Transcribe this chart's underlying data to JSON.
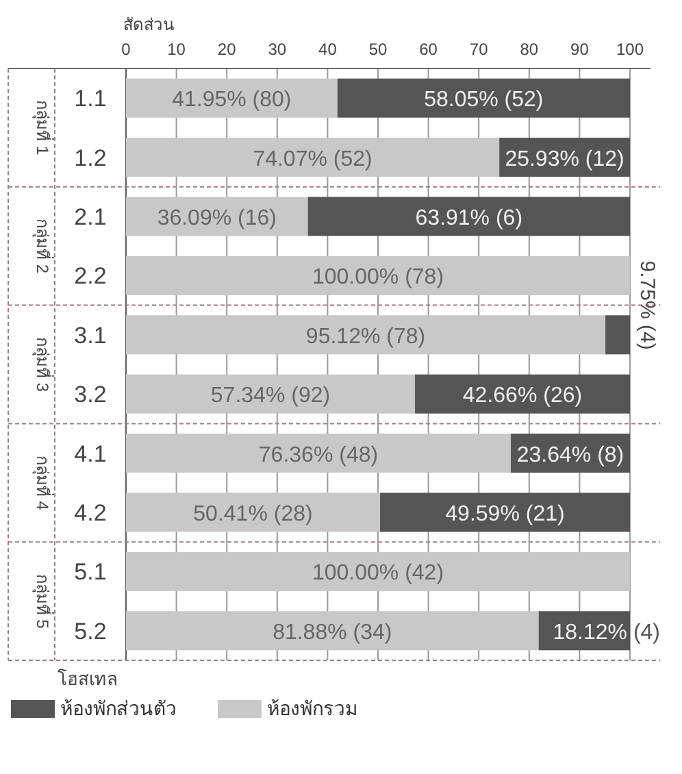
{
  "chart_data": {
    "type": "bar",
    "orientation": "horizontal",
    "stacked": true,
    "xlabel": "สัดส่วน",
    "ylabel": "โฮสเทล",
    "categories": [
      "1.1",
      "1.2",
      "2.1",
      "2.2",
      "3.1",
      "3.2",
      "4.1",
      "4.2",
      "5.1",
      "5.2"
    ],
    "xlim": [
      0,
      100
    ],
    "xticks": [
      0,
      10,
      20,
      30,
      40,
      50,
      60,
      70,
      80,
      90,
      100
    ],
    "grid": "x",
    "legend": "bottom",
    "series": [
      {
        "name": "ห้องพักรวม",
        "color": "#c8c8c8",
        "values": [
          41.95,
          74.07,
          36.09,
          100,
          95.12,
          57.34,
          76.36,
          50.41,
          100,
          81.88
        ],
        "value_labels": [
          "41.95% (80)",
          "74.07% (52)",
          "36.09% (16)",
          "100.00% (78)",
          "95.12% (78)",
          "57.34% (92)",
          "76.36% (48)",
          "50.41% (28)",
          "100.00% (42)",
          "81.88% (34)"
        ]
      },
      {
        "name": "ห้องพักส่วนตัว",
        "color": "#555555",
        "values": [
          58.05,
          25.93,
          63.91,
          0,
          4.9,
          42.66,
          23.64,
          49.59,
          0,
          18.12
        ],
        "value_labels": [
          "58.05% (52)",
          "25.93% (12)",
          "63.91% (6)",
          null,
          null,
          "42.66% (26)",
          "23.64% (8)",
          "49.59% (21)",
          null,
          "18.12% (4)"
        ]
      }
    ],
    "annotations": [
      "กลุ่มที่ 1",
      "กลุ่มที่ 2",
      "กลุ่มที่ 3",
      "กลุ่มที่ 4",
      "กลุ่มที่ 5",
      {
        "text": "9.75% (4)",
        "x": 100,
        "y": "3.1"
      }
    ]
  }
}
